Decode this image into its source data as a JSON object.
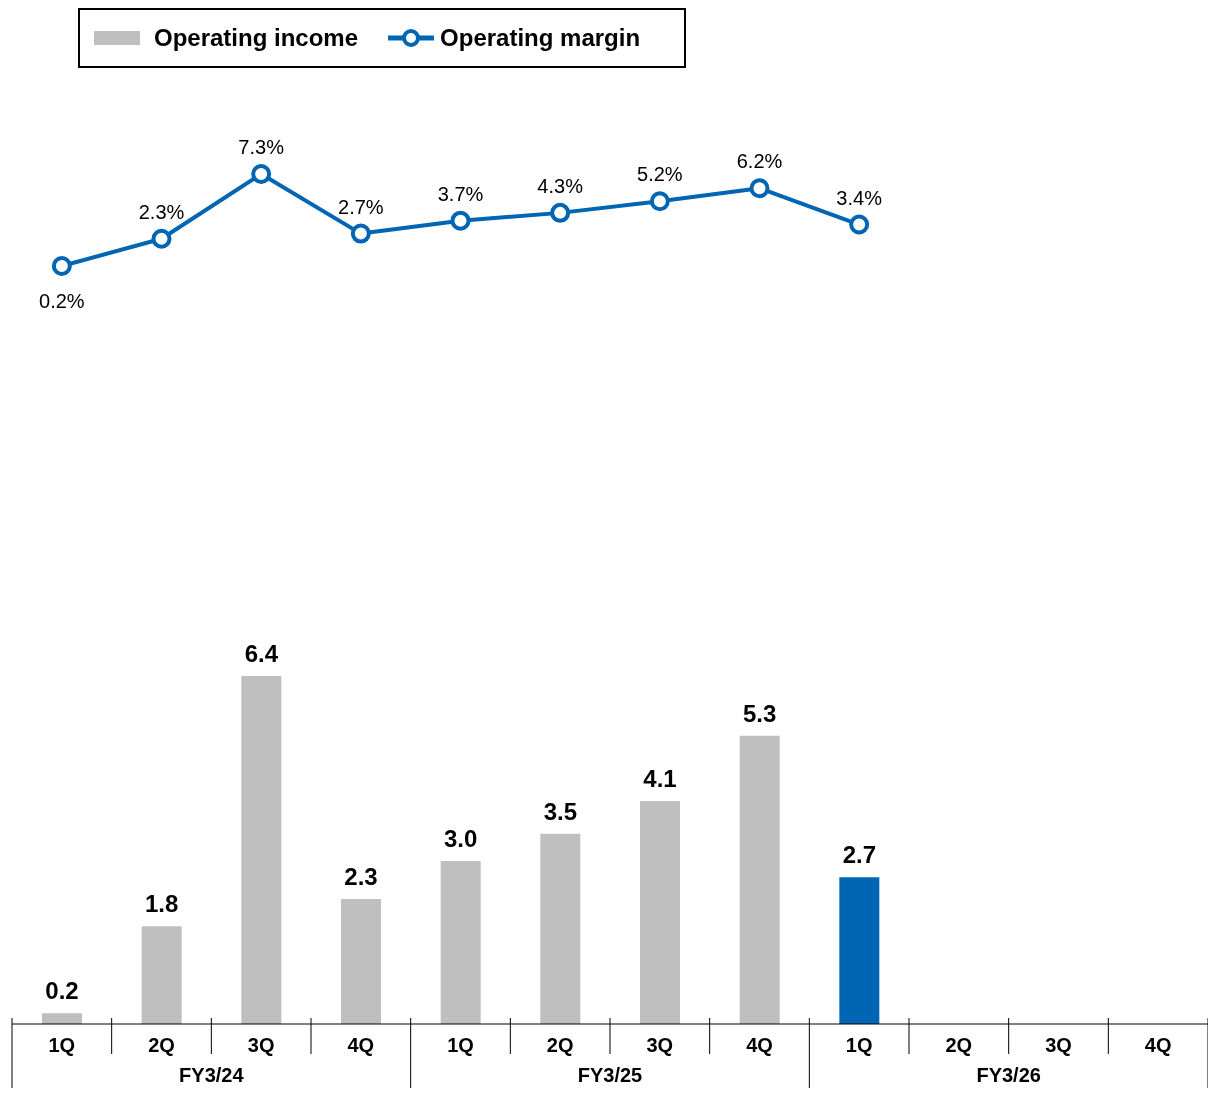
{
  "chart_data": [
    {
      "type": "line",
      "categories": [
        null,
        null,
        null,
        null,
        null,
        null,
        null,
        null,
        null,
        null,
        null,
        null
      ],
      "tick_labels": false,
      "marker": "circle",
      "data_labels": true,
      "legend": "top left",
      "series": [
        {
          "name": "Operating margin",
          "color": "#0066b3",
          "values": [
            0.2,
            2.3,
            7.3,
            2.7,
            3.7,
            4.3,
            5.2,
            6.2,
            3.4,
            null,
            null,
            null
          ],
          "value_labels": [
            "0.2%",
            "2.3%",
            "7.3%",
            "2.7%",
            "3.7%",
            "4.3%",
            "5.2%",
            "6.2%",
            "3.4%",
            null,
            null,
            null
          ]
        }
      ]
    },
    {
      "type": "bar",
      "categories": [
        "1Q",
        "2Q",
        "3Q",
        "4Q",
        "1Q",
        "2Q",
        "3Q",
        "4Q",
        "1Q",
        "2Q",
        "3Q",
        "4Q"
      ],
      "data_labels": true,
      "legend": "top left",
      "annotations": [
        "FY3/24",
        "FY3/25",
        "FY3/26"
      ],
      "series": [
        {
          "name": "Operating income",
          "color": "#bfbfbf",
          "colors": [
            "#bfbfbf",
            "#bfbfbf",
            "#bfbfbf",
            "#bfbfbf",
            "#bfbfbf",
            "#bfbfbf",
            "#bfbfbf",
            "#bfbfbf",
            "#0066b3",
            null,
            null,
            null
          ],
          "values": [
            0.2,
            1.8,
            6.4,
            2.3,
            3.0,
            3.5,
            4.1,
            5.3,
            2.7,
            null,
            null,
            null
          ],
          "value_labels": [
            "0.2",
            "1.8",
            "6.4",
            "2.3",
            "3.0",
            "3.5",
            "4.1",
            "5.3",
            "2.7",
            null,
            null,
            null
          ]
        }
      ]
    }
  ]
}
